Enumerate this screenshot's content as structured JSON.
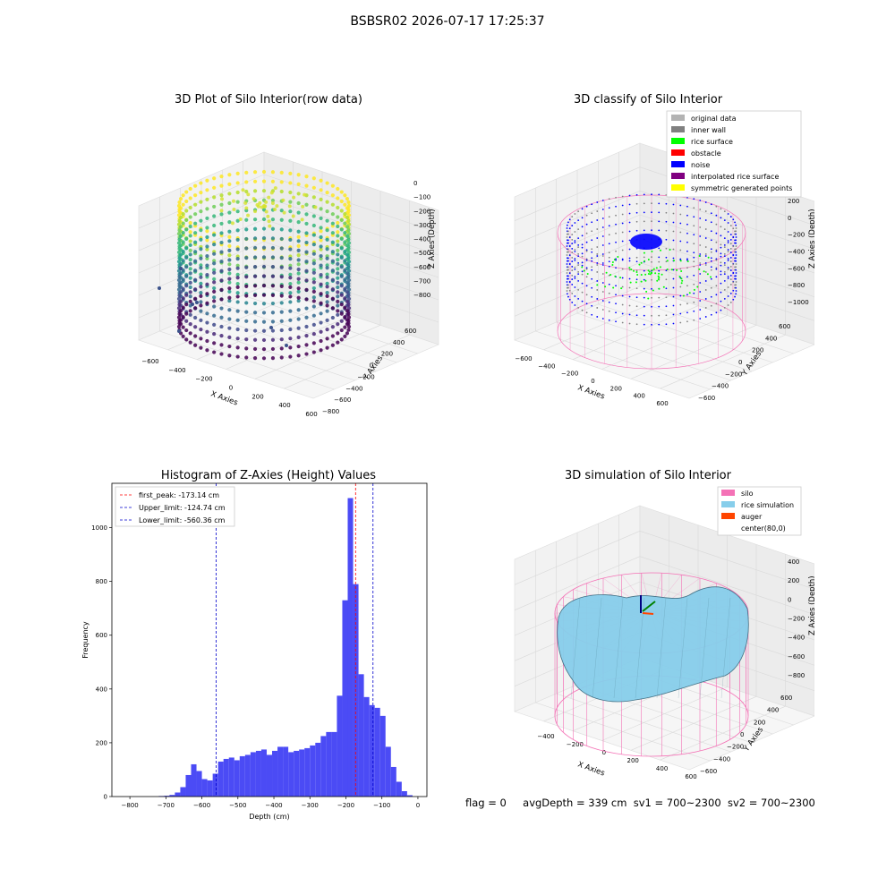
{
  "figure_title": "BSBSR02 2026-07-17 17:25:37",
  "colors": {
    "hist_bar": "#4b4bf5",
    "first_peak_line": "#ff0000",
    "limit_line": "#0000cc",
    "silo_wire": "#f472b6",
    "rice_surface": "#87ceeb",
    "auger": "#ff4500",
    "legend_original": "#b3b3b3",
    "legend_inner_wall": "#808080",
    "legend_rice_surface": "#00ff00",
    "legend_obstacle": "#ff0000",
    "legend_noise": "#0000ff",
    "legend_interpolated": "#800080",
    "legend_symmetric": "#ffff00"
  },
  "chart_data": [
    {
      "type": "scatter",
      "title": "3D Plot of Silo Interior(row data)",
      "xlabel": "X Axies",
      "ylabel": "Y Axies",
      "zlabel": "Z Axies (Depth)",
      "x_ticks": [
        "−600",
        "−400",
        "−200",
        "0",
        "200",
        "400",
        "600"
      ],
      "y_ticks": [
        "−800",
        "−600",
        "−400",
        "−200",
        "0",
        "200",
        "400",
        "600"
      ],
      "z_ticks": [
        "0",
        "−100",
        "−200",
        "−300",
        "−400",
        "−500",
        "−600",
        "−700",
        "−800"
      ],
      "colormap": "viridis"
    },
    {
      "type": "scatter",
      "title": "3D classify of Silo Interior",
      "xlabel": "X Axies",
      "ylabel": "Y Axies",
      "zlabel": "Z Axies (Depth)",
      "x_ticks": [
        "−600",
        "−400",
        "−200",
        "0",
        "200",
        "400",
        "600"
      ],
      "y_ticks": [
        "−600",
        "−400",
        "−200",
        "0",
        "200",
        "400",
        "600"
      ],
      "z_ticks": [
        "200",
        "0",
        "−200",
        "−400",
        "−600",
        "−800",
        "−1000"
      ],
      "legend": [
        "original data",
        "inner wall",
        "rice surface",
        "obstacle",
        "noise",
        "interpolated rice surface",
        "symmetric generated points"
      ],
      "legend_placement": "top-right"
    },
    {
      "type": "bar",
      "title": "Histogram of Z-Axies (Height) Values",
      "xlabel": "Depth (cm)",
      "ylabel": "Frequency",
      "xlim": [
        -850,
        25
      ],
      "ylim": [
        0,
        1165
      ],
      "x_ticks": [
        "−800",
        "−700",
        "−600",
        "−500",
        "−400",
        "−300",
        "−200",
        "−100",
        "0"
      ],
      "x_tick_values": [
        -800,
        -700,
        -600,
        -500,
        -400,
        -300,
        -200,
        -100,
        0
      ],
      "y_ticks": [
        0,
        200,
        400,
        600,
        800,
        1000
      ],
      "bin_width": 15,
      "bin_starts": [
        -720,
        -705,
        -690,
        -675,
        -660,
        -645,
        -630,
        -615,
        -600,
        -585,
        -570,
        -555,
        -540,
        -525,
        -510,
        -495,
        -480,
        -465,
        -450,
        -435,
        -420,
        -405,
        -390,
        -375,
        -360,
        -345,
        -330,
        -315,
        -300,
        -285,
        -270,
        -255,
        -240,
        -225,
        -210,
        -195,
        -180,
        -165,
        -150,
        -135,
        -120,
        -105,
        -90,
        -75,
        -60,
        -45,
        -30,
        -15
      ],
      "values": [
        2,
        3,
        6,
        15,
        35,
        80,
        120,
        95,
        65,
        60,
        85,
        130,
        140,
        145,
        135,
        150,
        155,
        165,
        170,
        175,
        155,
        170,
        185,
        185,
        165,
        170,
        175,
        180,
        190,
        200,
        225,
        240,
        240,
        375,
        730,
        1110,
        790,
        455,
        370,
        340,
        330,
        300,
        185,
        110,
        55,
        20,
        5,
        0
      ],
      "vlines": [
        {
          "label": "first_peak: -173.14 cm",
          "x": -173.14,
          "color": "#ff0000"
        },
        {
          "label": "Upper_limit: -124.74 cm",
          "x": -124.74,
          "color": "#0000cc"
        },
        {
          "label": "Lower_limit: -560.36 cm",
          "x": -560.36,
          "color": "#0000cc"
        }
      ],
      "legend_placement": "top-left"
    },
    {
      "type": "area",
      "title": "3D simulation of Silo Interior",
      "xlabel": "X Axies",
      "ylabel": "Y Axies",
      "zlabel": "Z Axies (Depth)",
      "x_ticks": [
        "−400",
        "−200",
        "0",
        "200",
        "400",
        "600"
      ],
      "y_ticks": [
        "−600",
        "−400",
        "−200",
        "0",
        "200",
        "400",
        "600"
      ],
      "z_ticks": [
        "400",
        "200",
        "0",
        "−200",
        "−400",
        "−600",
        "−800"
      ],
      "legend": [
        "silo",
        "rice simulation",
        "auger",
        "center(80,0)"
      ],
      "legend_placement": "top-right"
    }
  ],
  "footer": {
    "flag": "flag = 0",
    "avg_depth": "avgDepth = 339 cm",
    "sv1": "sv1 = 700~2300",
    "sv2": "sv2 = 700~2300"
  }
}
